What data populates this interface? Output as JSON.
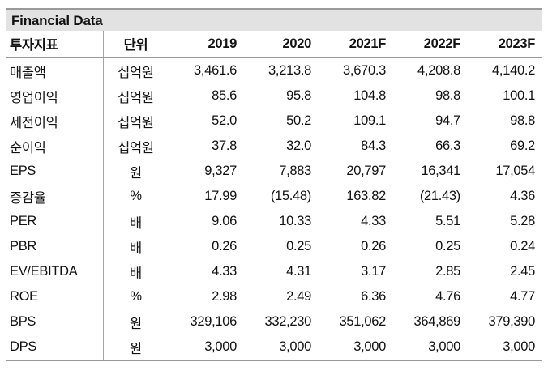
{
  "title": "Financial Data",
  "colors": {
    "title_band_bg": "#e2e2e2",
    "rule_gray": "#9a9a9a",
    "separator_gray": "#a5a5a5",
    "text": "#121212"
  },
  "table": {
    "columns": [
      "투자지표",
      "단위",
      "2019",
      "2020",
      "2021F",
      "2022F",
      "2023F"
    ],
    "rows": [
      {
        "label": "매출액",
        "unit": "십억원",
        "values": [
          "3,461.6",
          "3,213.8",
          "3,670.3",
          "4,208.8",
          "4,140.2"
        ]
      },
      {
        "label": "영업이익",
        "unit": "십억원",
        "values": [
          "85.6",
          "95.8",
          "104.8",
          "98.8",
          "100.1"
        ]
      },
      {
        "label": "세전이익",
        "unit": "십억원",
        "values": [
          "52.0",
          "50.2",
          "109.1",
          "94.7",
          "98.8"
        ]
      },
      {
        "label": "순이익",
        "unit": "십억원",
        "values": [
          "37.8",
          "32.0",
          "84.3",
          "66.3",
          "69.2"
        ]
      },
      {
        "label": "EPS",
        "unit": "원",
        "values": [
          "9,327",
          "7,883",
          "20,797",
          "16,341",
          "17,054"
        ]
      },
      {
        "label": "증감율",
        "unit": "%",
        "values": [
          "17.99",
          "(15.48)",
          "163.82",
          "(21.43)",
          "4.36"
        ]
      },
      {
        "label": "PER",
        "unit": "배",
        "values": [
          "9.06",
          "10.33",
          "4.33",
          "5.51",
          "5.28"
        ]
      },
      {
        "label": "PBR",
        "unit": "배",
        "values": [
          "0.26",
          "0.25",
          "0.26",
          "0.25",
          "0.24"
        ]
      },
      {
        "label": "EV/EBITDA",
        "unit": "배",
        "values": [
          "4.33",
          "4.31",
          "3.17",
          "2.85",
          "2.45"
        ]
      },
      {
        "label": "ROE",
        "unit": "%",
        "values": [
          "2.98",
          "2.49",
          "6.36",
          "4.76",
          "4.77"
        ]
      },
      {
        "label": "BPS",
        "unit": "원",
        "values": [
          "329,106",
          "332,230",
          "351,062",
          "364,869",
          "379,390"
        ]
      },
      {
        "label": "DPS",
        "unit": "원",
        "values": [
          "3,000",
          "3,000",
          "3,000",
          "3,000",
          "3,000"
        ]
      }
    ]
  }
}
